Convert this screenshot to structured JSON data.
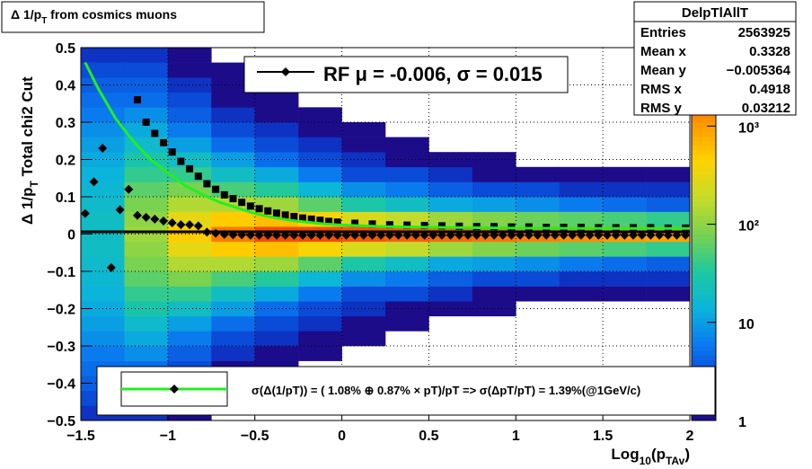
{
  "chart_data": {
    "type": "heatmap",
    "title": [
      "Δ 1/p",
      "T",
      " from cosmics muons"
    ],
    "ylabel": [
      "Δ 1/p",
      "T",
      "  Total chi2 Cut"
    ],
    "xlabel": [
      "Log",
      "10",
      "(p",
      "TAv",
      ")"
    ],
    "xlim": [
      -1.5,
      2
    ],
    "ylim": [
      -0.5,
      0.5
    ],
    "xticks": [
      {
        "value": -1.5,
        "label": "−1.5"
      },
      {
        "value": -1,
        "label": "−1"
      },
      {
        "value": -0.5,
        "label": "−0.5"
      },
      0,
      0.5,
      1,
      1.5,
      2
    ],
    "yticks": [
      {
        "value": -0.5,
        "label": "−0.5"
      },
      {
        "value": -0.4,
        "label": "−0.4"
      },
      {
        "value": -0.3,
        "label": "−0.3"
      },
      {
        "value": -0.2,
        "label": "−0.2"
      },
      {
        "value": -0.1,
        "label": "−0.1"
      },
      0,
      0.1,
      0.2,
      0.3,
      0.4,
      0.5
    ],
    "grid": true,
    "zlog": true,
    "zlim": [
      1,
      6300
    ],
    "zticks": [
      1,
      10,
      {
        "value": 100,
        "label": "10²"
      },
      {
        "value": 1000,
        "label": "10³"
      }
    ],
    "palette": [
      "#1c0c8a",
      "#0a3ccf",
      "#0a78f0",
      "#0ab4dc",
      "#1ec8a0",
      "#78d250",
      "#c8dc28",
      "#ffd200",
      "#ff9600",
      "#f04a0a",
      "#c81400"
    ],
    "heatmap": {
      "xedges": [
        -1.5,
        -1.25,
        -1,
        -0.75,
        -0.5,
        -0.25,
        0,
        0.25,
        0.5,
        0.75,
        1,
        1.25,
        1.5,
        1.75,
        2
      ],
      "yedges": [
        -0.5,
        -0.46,
        -0.42,
        -0.38,
        -0.34,
        -0.3,
        -0.26,
        -0.22,
        -0.18,
        -0.14,
        -0.1,
        -0.06,
        -0.02,
        0.02,
        0.06,
        0.1,
        0.14,
        0.18,
        0.22,
        0.26,
        0.3,
        0.34,
        0.38,
        0.42,
        0.46,
        0.5
      ],
      "z": [
        [
          2,
          3,
          4,
          5,
          6,
          8,
          10,
          12,
          14,
          16,
          18,
          20,
          20,
          20,
          18,
          16,
          14,
          12,
          10,
          8,
          6,
          5,
          4,
          3,
          2
        ],
        [
          2,
          3,
          4,
          5,
          8,
          12,
          18,
          28,
          40,
          60,
          80,
          100,
          120,
          100,
          80,
          60,
          40,
          28,
          18,
          12,
          8,
          5,
          4,
          3,
          2
        ],
        [
          1,
          1,
          2,
          3,
          4,
          6,
          10,
          20,
          40,
          80,
          150,
          300,
          500,
          300,
          150,
          80,
          40,
          20,
          10,
          6,
          4,
          3,
          2,
          1,
          1
        ],
        [
          0,
          1,
          1,
          1,
          2,
          3,
          5,
          10,
          20,
          50,
          150,
          500,
          1500,
          500,
          150,
          50,
          20,
          10,
          5,
          3,
          2,
          1,
          1,
          1,
          0
        ],
        [
          0,
          0,
          0,
          1,
          1,
          2,
          3,
          5,
          12,
          35,
          120,
          600,
          2500,
          600,
          120,
          35,
          12,
          5,
          3,
          2,
          1,
          1,
          0,
          0,
          0
        ],
        [
          0,
          0,
          0,
          0,
          1,
          1,
          2,
          3,
          6,
          15,
          60,
          400,
          2500,
          400,
          60,
          15,
          6,
          3,
          2,
          1,
          1,
          0,
          0,
          0,
          0
        ],
        [
          0,
          0,
          0,
          0,
          0,
          1,
          1,
          2,
          3,
          8,
          30,
          250,
          2200,
          250,
          30,
          8,
          3,
          2,
          1,
          1,
          0,
          0,
          0,
          0,
          0
        ],
        [
          0,
          0,
          0,
          0,
          0,
          0,
          1,
          1,
          3,
          6,
          20,
          180,
          2000,
          180,
          20,
          6,
          3,
          1,
          1,
          0,
          0,
          0,
          0,
          0,
          0
        ],
        [
          0,
          0,
          0,
          0,
          0,
          0,
          0,
          1,
          2,
          4,
          12,
          120,
          1800,
          120,
          12,
          4,
          2,
          1,
          0,
          0,
          0,
          0,
          0,
          0,
          0
        ],
        [
          0,
          0,
          0,
          0,
          0,
          0,
          0,
          1,
          1,
          3,
          10,
          90,
          1600,
          90,
          10,
          3,
          1,
          1,
          0,
          0,
          0,
          0,
          0,
          0,
          0
        ],
        [
          0,
          0,
          0,
          0,
          0,
          0,
          0,
          0,
          1,
          3,
          8,
          70,
          1400,
          70,
          8,
          3,
          1,
          0,
          0,
          0,
          0,
          0,
          0,
          0,
          0
        ],
        [
          0,
          0,
          0,
          0,
          0,
          0,
          0,
          0,
          1,
          2,
          6,
          60,
          1200,
          60,
          6,
          2,
          1,
          0,
          0,
          0,
          0,
          0,
          0,
          0,
          0
        ],
        [
          0,
          0,
          0,
          0,
          0,
          0,
          0,
          0,
          1,
          2,
          5,
          50,
          1000,
          50,
          5,
          2,
          1,
          0,
          0,
          0,
          0,
          0,
          0,
          0,
          0
        ],
        [
          0,
          0,
          0,
          0,
          0,
          0,
          0,
          0,
          1,
          2,
          4,
          40,
          900,
          40,
          4,
          2,
          1,
          0,
          0,
          0,
          0,
          0,
          0,
          0,
          0
        ]
      ]
    },
    "series": [
      {
        "name": "RF μ = -0.006, σ =   0.015",
        "style": "diamond",
        "color": "#000000",
        "x": [
          -1.475,
          -1.425,
          -1.375,
          -1.325,
          -1.275,
          -1.225,
          -1.175,
          -1.125,
          -1.075,
          -1.025,
          -0.975,
          -0.925,
          -0.875,
          -0.825,
          -0.775,
          -0.725,
          -0.675,
          -0.625,
          -0.575,
          -0.525,
          -0.475,
          -0.425,
          -0.375,
          -0.325,
          -0.275,
          -0.225,
          -0.175,
          -0.125,
          -0.075,
          -0.025,
          0.025,
          0.075,
          0.125,
          0.175,
          0.225,
          0.275,
          0.325,
          0.375,
          0.425,
          0.475,
          0.525,
          0.575,
          0.625,
          0.675,
          0.725,
          0.775,
          0.825,
          0.875,
          0.925,
          0.975,
          1.025,
          1.075,
          1.125,
          1.175,
          1.225,
          1.275,
          1.325,
          1.375,
          1.425,
          1.475,
          1.525,
          1.575,
          1.625,
          1.675,
          1.725,
          1.775,
          1.825,
          1.875,
          1.925,
          1.975
        ],
        "values": [
          0.055,
          0.14,
          0.23,
          -0.09,
          0.065,
          0.12,
          0.05,
          0.045,
          0.04,
          0.035,
          0.03,
          0.025,
          0.025,
          0.022,
          0.005,
          0.002,
          -0.001,
          -0.002,
          -0.002,
          -0.003,
          -0.003,
          -0.003,
          -0.003,
          -0.003,
          -0.003,
          -0.003,
          -0.003,
          -0.003,
          -0.003,
          -0.003,
          -0.003,
          -0.003,
          -0.003,
          -0.003,
          -0.003,
          -0.003,
          -0.003,
          -0.003,
          -0.003,
          -0.003,
          -0.003,
          -0.003,
          -0.003,
          -0.003,
          -0.003,
          -0.003,
          -0.003,
          -0.003,
          -0.003,
          -0.003,
          -0.003,
          -0.003,
          -0.003,
          -0.003,
          -0.003,
          -0.003,
          -0.003,
          -0.003,
          -0.003,
          -0.003,
          -0.003,
          -0.003,
          -0.003,
          -0.003,
          -0.003,
          -0.003,
          -0.003,
          -0.003,
          -0.003,
          -0.003
        ]
      },
      {
        "style": "square",
        "color": "#000000",
        "x": [
          -1.175,
          -1.125,
          -1.075,
          -1.025,
          -0.975,
          -0.925,
          -0.875,
          -0.825,
          -0.775,
          -0.725,
          -0.675,
          -0.625,
          -0.575,
          -0.525,
          -0.475,
          -0.425,
          -0.375,
          -0.325,
          -0.275,
          -0.225,
          -0.175,
          -0.125,
          -0.075,
          -0.025,
          0.075,
          0.175,
          0.275,
          0.375,
          0.475,
          0.575,
          0.675,
          0.775,
          0.875,
          0.975,
          1.075,
          1.175,
          1.275,
          1.375,
          1.475,
          1.575,
          1.675,
          1.775,
          1.875,
          1.975
        ],
        "values": [
          0.36,
          0.3,
          0.27,
          0.245,
          0.22,
          0.195,
          0.175,
          0.155,
          0.135,
          0.12,
          0.105,
          0.095,
          0.085,
          0.075,
          0.068,
          0.062,
          0.056,
          0.051,
          0.047,
          0.043,
          0.04,
          0.037,
          0.034,
          0.032,
          0.029,
          0.027,
          0.025,
          0.024,
          0.023,
          0.022,
          0.021,
          0.02,
          0.02,
          0.019,
          0.019,
          0.018,
          0.018,
          0.018,
          0.017,
          0.017,
          0.017,
          0.017,
          0.016,
          0.016
        ]
      },
      {
        "name": "σ(Δ(1/pT)) = ( 1.08% ⊕  0.87% × pT)/pT => σ(ΔpT/pT) =  1.39%(@1GeV/c)",
        "style": "line",
        "color": "#22ee22",
        "x": [
          -1.475,
          -1.4,
          -1.3,
          -1.2,
          -1.1,
          -1,
          -0.9,
          -0.8,
          -0.7,
          -0.6,
          -0.5,
          -0.4,
          -0.3,
          -0.2,
          -0.1,
          0,
          0.25,
          0.5,
          1,
          1.5,
          2
        ],
        "values": [
          0.46,
          0.39,
          0.31,
          0.25,
          0.2,
          0.165,
          0.13,
          0.105,
          0.085,
          0.07,
          0.055,
          0.045,
          0.037,
          0.032,
          0.027,
          0.024,
          0.02,
          0.018,
          0.016,
          0.015,
          0.015
        ]
      },
      {
        "style": "line",
        "color": "#000000",
        "x": [
          -1.5,
          2
        ],
        "values": [
          0.006,
          0.006
        ]
      }
    ],
    "stats": {
      "name": "DelpTlAllT",
      "rows": [
        [
          "Entries",
          "2563925"
        ],
        [
          "Mean x",
          "0.3328"
        ],
        [
          "Mean y",
          "−0.005364"
        ],
        [
          "RMS x",
          "0.4918"
        ],
        [
          "RMS y",
          "0.03212"
        ]
      ]
    }
  }
}
